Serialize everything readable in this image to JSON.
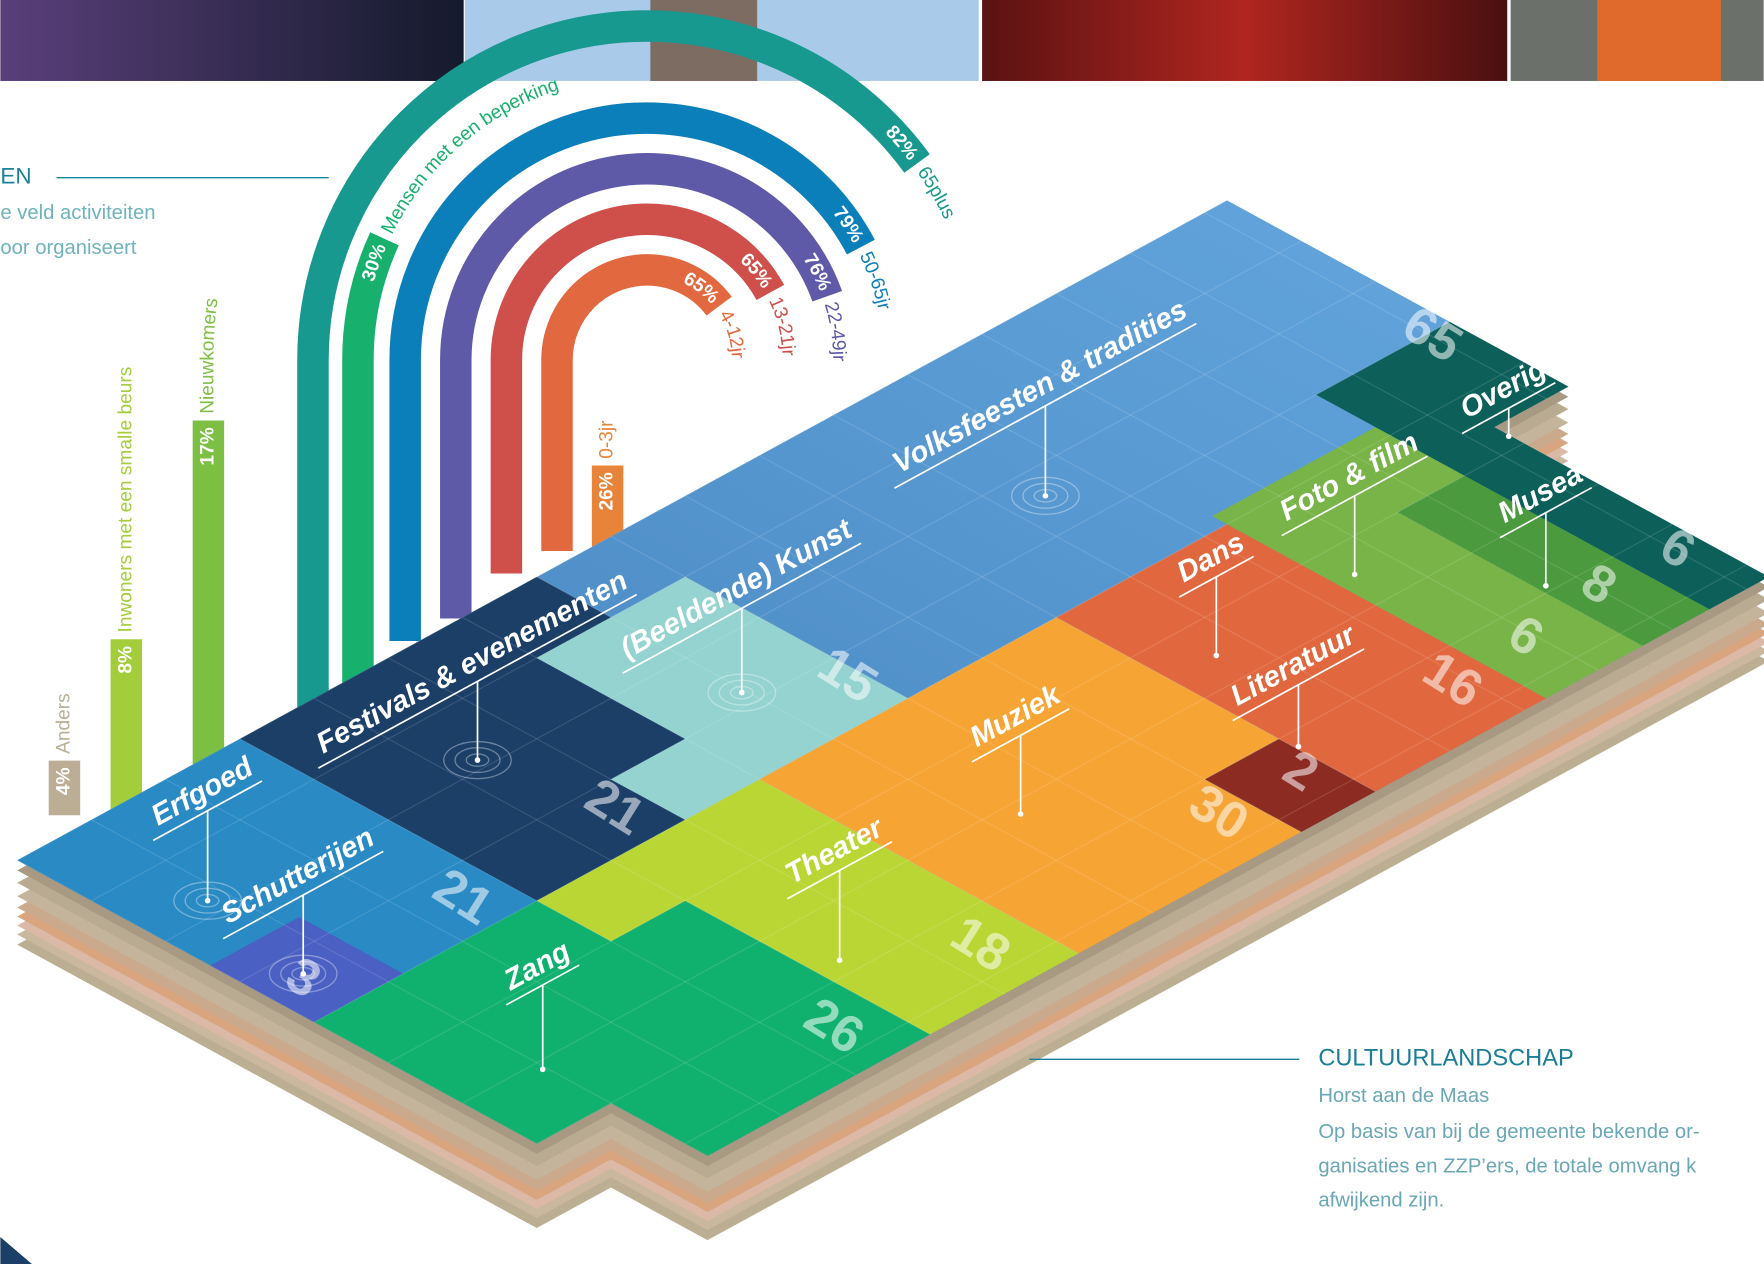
{
  "intro": {
    "title": "EN",
    "lines": [
      "e veld activiteiten",
      "oor organiseert"
    ]
  },
  "age_groups": [
    {
      "pct": "82%",
      "label": "65plus",
      "color": "#17998f"
    },
    {
      "pct": "79%",
      "label": "50-65jr",
      "color": "#0b7fba"
    },
    {
      "pct": "76%",
      "label": "22-49jr",
      "color": "#5e5aa8"
    },
    {
      "pct": "65%",
      "label": "13-21jr",
      "color": "#cf4f4b"
    },
    {
      "pct": "65%",
      "label": "4-12jr",
      "color": "#e2683f"
    },
    {
      "pct": "26%",
      "label": "0-3jr",
      "color": "#e8843a"
    }
  ],
  "target_groups": [
    {
      "pct": "30%",
      "label": "Mensen met een beperking",
      "color": "#17b06c"
    },
    {
      "pct": "17%",
      "label": "Nieuwkomers",
      "color": "#7dbf43"
    },
    {
      "pct": "8%",
      "label": "Inwoners met een smalle beurs",
      "color": "#a3cd3b"
    },
    {
      "pct": "4%",
      "label": "Anders",
      "color": "#bcae95"
    }
  ],
  "landscape": {
    "areas": [
      {
        "label": "Volksfeesten & tradities",
        "value": 65,
        "color": "#4d8ac3"
      },
      {
        "label": "Festivals & evenementen",
        "value": 21,
        "color": "#1b3f67"
      },
      {
        "label": "(Beeldende) Kunst",
        "value": 15,
        "color": "#94d3cf"
      },
      {
        "label": "Erfgoed",
        "value": 21,
        "color": "#2a8ac4"
      },
      {
        "label": "Schutterijen",
        "value": 3,
        "color": "#4a60c2"
      },
      {
        "label": "Zang",
        "value": 26,
        "color": "#10b06e"
      },
      {
        "label": "Theater",
        "value": 18,
        "color": "#bad634"
      },
      {
        "label": "Muziek",
        "value": 30,
        "color": "#f6a434"
      },
      {
        "label": "Literatuur",
        "value": 2,
        "color": "#8c2b22"
      },
      {
        "label": "Dans",
        "value": 16,
        "color": "#e1683e"
      },
      {
        "label": "Foto & film",
        "value": 6,
        "color": "#78b448"
      },
      {
        "label": "Musea",
        "value": 8,
        "color": "#4b9a3d"
      },
      {
        "label": "Overig",
        "value": 6,
        "color": "#0d5f59"
      }
    ]
  },
  "caption": {
    "title": "CULTUURLANDSCHAP",
    "subtitle": "Horst aan de Maas",
    "lines": [
      "Op basis van bij de gemeente bekende or-",
      "ganisaties en ZZP’ers, de totale omvang k",
      "afwijkend zijn."
    ]
  }
}
